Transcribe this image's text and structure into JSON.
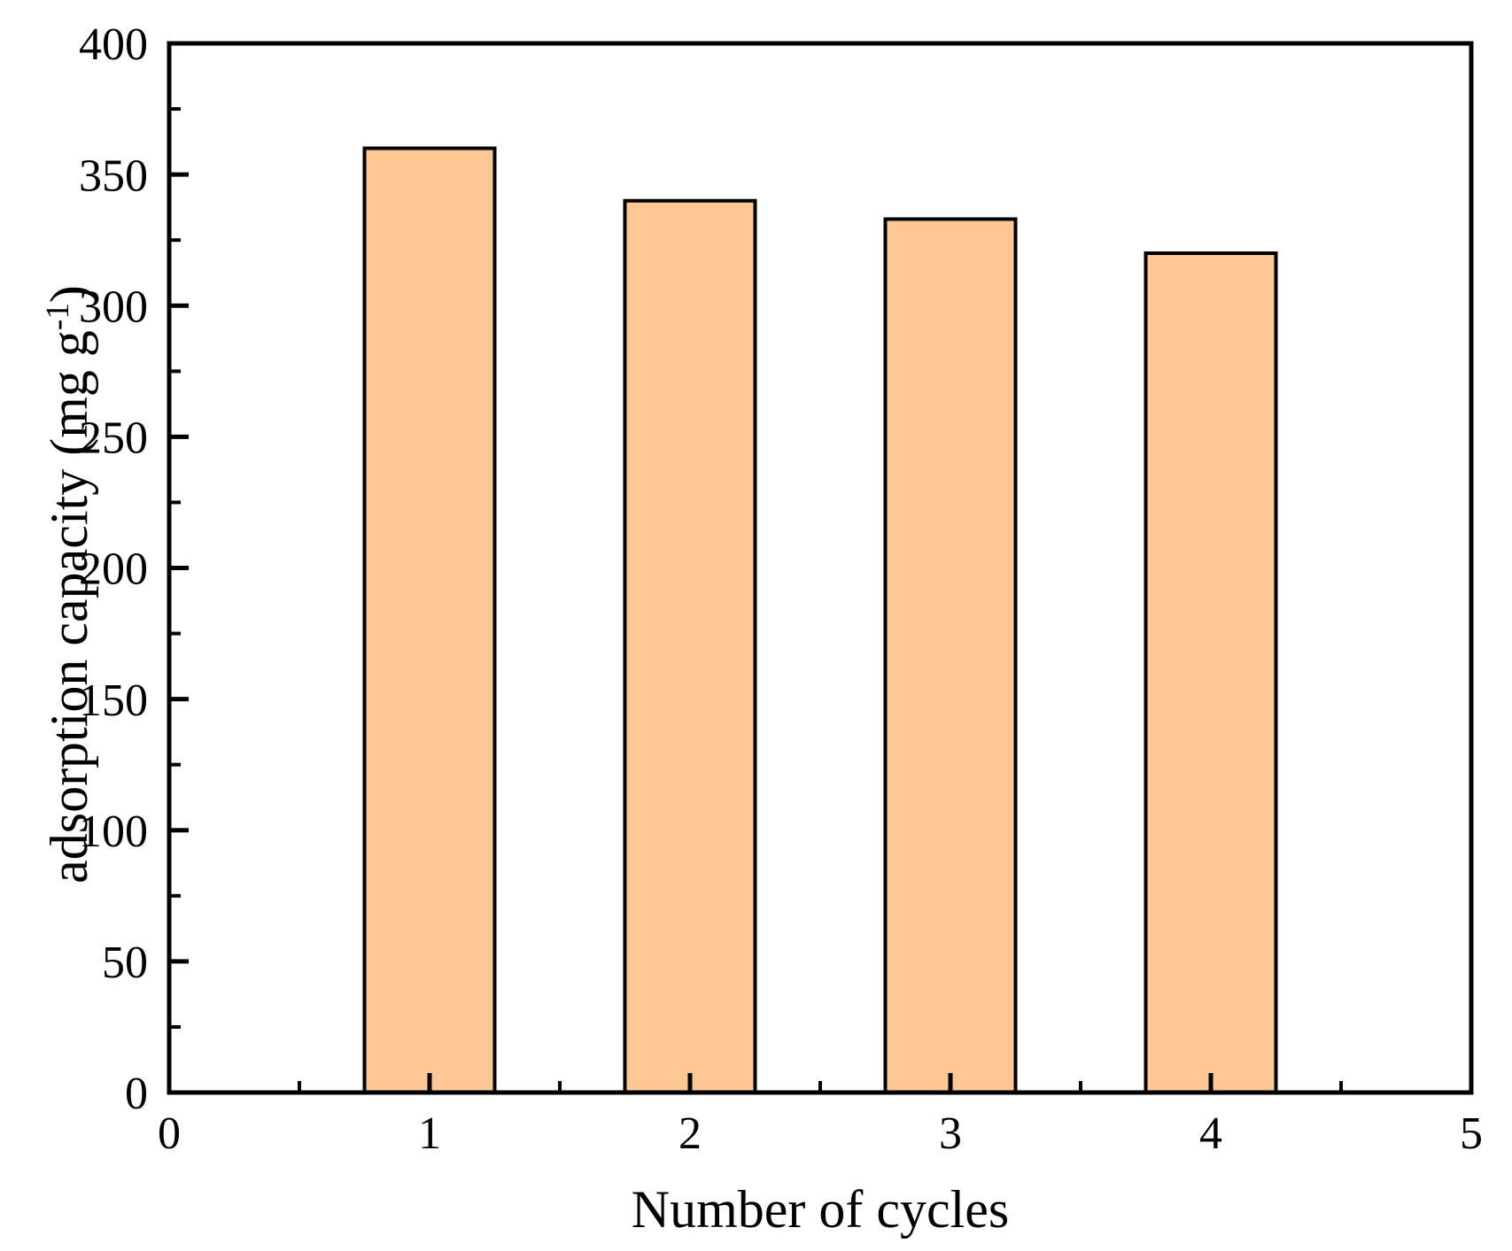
{
  "figure": {
    "background": "#FFFFFF"
  },
  "chart_data": {
    "type": "bar",
    "title": "",
    "xlabel": "Number of cycles",
    "ylabel": "adsorption capacity (mg g⁻¹)",
    "ylabel_parts": {
      "main": "adsorption capacity (mg g",
      "sup": "-1",
      "close": ")"
    },
    "x": [
      1,
      2,
      3,
      4
    ],
    "values": [
      360,
      340,
      333,
      320
    ],
    "bar_width": 0.5,
    "xlim": [
      0,
      5
    ],
    "ylim": [
      0,
      400
    ],
    "x_major_ticks": [
      0,
      1,
      2,
      3,
      4,
      5
    ],
    "x_minor_ticks": [
      0.5,
      1.5,
      2.5,
      3.5,
      4.5
    ],
    "y_major_ticks": [
      0,
      50,
      100,
      150,
      200,
      250,
      300,
      350,
      400
    ],
    "y_minor_ticks": [
      25,
      75,
      125,
      175,
      225,
      275,
      325,
      375
    ],
    "grid": false,
    "legend": null,
    "tick_direction": "in",
    "colors": {
      "bar_fill": "#FDC894",
      "bar_stroke": "#000000",
      "axis": "#000000",
      "text": "#000000"
    }
  }
}
